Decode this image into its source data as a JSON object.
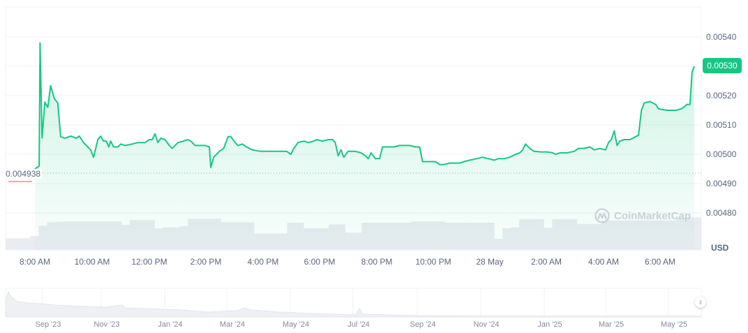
{
  "chart_data": {
    "type": "line",
    "title": "",
    "currency": "USD",
    "current_price_label": "0.00530",
    "start_price_label": "0.004938",
    "yaxis": {
      "ticks": [
        "0.00540",
        "0.00530",
        "0.00520",
        "0.00510",
        "0.00500",
        "0.00490",
        "0.00480"
      ],
      "ylim": [
        0.00476,
        0.0055
      ]
    },
    "xaxis": {
      "ticks": [
        "8:00 AM",
        "10:00 AM",
        "12:00 PM",
        "2:00 PM",
        "4:00 PM",
        "6:00 PM",
        "8:00 PM",
        "10:00 PM",
        "28 May",
        "2:00 AM",
        "4:00 AM",
        "6:00 AM"
      ]
    },
    "series": [
      {
        "name": "Price",
        "color": "#16c784",
        "points": [
          [
            0.0,
            0.00495
          ],
          [
            0.15,
            0.00496
          ],
          [
            0.18,
            0.00538
          ],
          [
            0.25,
            0.005056
          ],
          [
            0.35,
            0.005178
          ],
          [
            0.45,
            0.00516
          ],
          [
            0.55,
            0.005234
          ],
          [
            0.68,
            0.00519
          ],
          [
            0.8,
            0.005175
          ],
          [
            0.9,
            0.00506
          ],
          [
            1.05,
            0.005055
          ],
          [
            1.25,
            0.005062
          ],
          [
            1.45,
            0.005055
          ],
          [
            1.55,
            0.005062
          ],
          [
            1.7,
            0.00504
          ],
          [
            1.85,
            0.005025
          ],
          [
            1.95,
            0.005015
          ],
          [
            2.05,
            0.00499
          ],
          [
            2.2,
            0.00505
          ],
          [
            2.3,
            0.005062
          ],
          [
            2.4,
            0.005045
          ],
          [
            2.5,
            0.005045
          ],
          [
            2.58,
            0.005025
          ],
          [
            2.65,
            0.005045
          ],
          [
            2.75,
            0.005025
          ],
          [
            2.9,
            0.005025
          ],
          [
            3.0,
            0.005035
          ],
          [
            3.15,
            0.00503
          ],
          [
            3.4,
            0.005035
          ],
          [
            3.6,
            0.00504
          ],
          [
            3.85,
            0.00504
          ],
          [
            4.0,
            0.00505
          ],
          [
            4.1,
            0.00505
          ],
          [
            4.2,
            0.00507
          ],
          [
            4.3,
            0.00504
          ],
          [
            4.4,
            0.005055
          ],
          [
            4.55,
            0.00505
          ],
          [
            4.7,
            0.00503
          ],
          [
            4.8,
            0.00502
          ],
          [
            5.0,
            0.00504
          ],
          [
            5.2,
            0.005045
          ],
          [
            5.35,
            0.00505
          ],
          [
            5.45,
            0.005045
          ],
          [
            5.6,
            0.00503
          ],
          [
            5.8,
            0.00503
          ],
          [
            5.95,
            0.00503
          ],
          [
            6.1,
            0.005025
          ],
          [
            6.15,
            0.004955
          ],
          [
            6.25,
            0.00499
          ],
          [
            6.45,
            0.00501
          ],
          [
            6.6,
            0.00502
          ],
          [
            6.75,
            0.00506
          ],
          [
            6.85,
            0.00506
          ],
          [
            7.0,
            0.00504
          ],
          [
            7.1,
            0.00503
          ],
          [
            7.25,
            0.005035
          ],
          [
            7.4,
            0.005025
          ],
          [
            7.6,
            0.005015
          ],
          [
            7.9,
            0.00501
          ],
          [
            8.3,
            0.00501
          ],
          [
            8.6,
            0.00501
          ],
          [
            8.8,
            0.00501
          ],
          [
            8.95,
            0.005
          ],
          [
            9.05,
            0.00502
          ],
          [
            9.2,
            0.00504
          ],
          [
            9.4,
            0.005045
          ],
          [
            9.55,
            0.00504
          ],
          [
            9.75,
            0.005045
          ],
          [
            9.85,
            0.00505
          ],
          [
            10.05,
            0.005045
          ],
          [
            10.25,
            0.00505
          ],
          [
            10.4,
            0.00505
          ],
          [
            10.5,
            0.00504
          ],
          [
            10.6,
            0.004995
          ],
          [
            10.7,
            0.005015
          ],
          [
            10.8,
            0.00499
          ],
          [
            10.95,
            0.00501
          ],
          [
            11.2,
            0.00501
          ],
          [
            11.4,
            0.005005
          ],
          [
            11.55,
            0.004995
          ],
          [
            11.65,
            0.004985
          ],
          [
            11.75,
            0.005005
          ],
          [
            11.9,
            0.004985
          ],
          [
            12.05,
            0.004985
          ],
          [
            12.15,
            0.005025
          ],
          [
            12.35,
            0.005025
          ],
          [
            12.55,
            0.005025
          ],
          [
            12.75,
            0.00503
          ],
          [
            12.9,
            0.00503
          ],
          [
            13.1,
            0.00503
          ],
          [
            13.3,
            0.005025
          ],
          [
            13.45,
            0.005025
          ],
          [
            13.55,
            0.004975
          ],
          [
            13.75,
            0.004975
          ],
          [
            14.0,
            0.004975
          ],
          [
            14.15,
            0.004965
          ],
          [
            14.3,
            0.004965
          ],
          [
            14.5,
            0.00497
          ],
          [
            14.7,
            0.00497
          ],
          [
            14.85,
            0.00497
          ],
          [
            15.0,
            0.004975
          ],
          [
            15.2,
            0.00498
          ],
          [
            15.45,
            0.004985
          ],
          [
            15.65,
            0.00499
          ],
          [
            15.85,
            0.004985
          ],
          [
            16.05,
            0.00498
          ],
          [
            16.2,
            0.004985
          ],
          [
            16.4,
            0.004985
          ],
          [
            16.6,
            0.00499
          ],
          [
            16.8,
            0.005
          ],
          [
            16.95,
            0.005005
          ],
          [
            17.05,
            0.005015
          ],
          [
            17.15,
            0.005035
          ],
          [
            17.3,
            0.00502
          ],
          [
            17.45,
            0.00501
          ],
          [
            17.7,
            0.005008
          ],
          [
            17.9,
            0.005008
          ],
          [
            18.1,
            0.005005
          ],
          [
            18.2,
            0.005
          ],
          [
            18.35,
            0.005005
          ],
          [
            18.6,
            0.005005
          ],
          [
            18.85,
            0.00501
          ],
          [
            19.0,
            0.00502
          ],
          [
            19.2,
            0.00502
          ],
          [
            19.4,
            0.005025
          ],
          [
            19.55,
            0.005015
          ],
          [
            19.75,
            0.00502
          ],
          [
            19.95,
            0.005015
          ],
          [
            20.05,
            0.00504
          ],
          [
            20.15,
            0.00505
          ],
          [
            20.25,
            0.00508
          ],
          [
            20.35,
            0.00503
          ],
          [
            20.45,
            0.005045
          ],
          [
            20.6,
            0.00505
          ],
          [
            20.8,
            0.00505
          ],
          [
            21.0,
            0.00506
          ],
          [
            21.1,
            0.005065
          ],
          [
            21.2,
            0.00515
          ],
          [
            21.3,
            0.005175
          ],
          [
            21.5,
            0.00518
          ],
          [
            21.7,
            0.00517
          ],
          [
            21.8,
            0.005155
          ],
          [
            22.1,
            0.00515
          ],
          [
            22.4,
            0.00515
          ],
          [
            22.6,
            0.005155
          ],
          [
            22.8,
            0.00517
          ],
          [
            22.9,
            0.00517
          ],
          [
            22.97,
            0.00528
          ],
          [
            23.05,
            0.0053
          ]
        ],
        "x_unit": "hours since ~7:00 AM"
      },
      {
        "name": "Volume",
        "color": "#e6e9ee",
        "relative_heights": [
          0.27,
          0.27,
          0.27,
          0.32,
          0.56,
          0.64,
          0.65,
          0.66,
          0.66,
          0.66,
          0.66,
          0.66,
          0.66,
          0.66,
          0.58,
          0.69,
          0.69,
          0.69,
          0.5,
          0.52,
          0.52,
          0.55,
          0.72,
          0.72,
          0.72,
          0.72,
          0.64,
          0.64,
          0.64,
          0.64,
          0.38,
          0.38,
          0.38,
          0.38,
          0.63,
          0.63,
          0.5,
          0.5,
          0.5,
          0.59,
          0.59,
          0.4,
          0.4,
          0.63,
          0.63,
          0.63,
          0.63,
          0.63,
          0.63,
          0.66,
          0.66,
          0.66,
          0.66,
          0.63,
          0.63,
          0.63,
          0.63,
          0.63,
          0.63,
          0.26,
          0.5,
          0.52,
          0.71,
          0.71,
          0.71,
          0.51,
          0.71,
          0.71,
          0.71,
          0.6,
          0.6,
          0.6,
          0.68,
          0.68,
          0.68,
          0.68,
          0.68,
          0.68,
          0.68,
          0.68,
          0.68,
          0.75,
          0.75,
          0.75
        ]
      }
    ],
    "navigator": {
      "ticks": [
        "Sep '23",
        "Nov '23",
        "Jan '24",
        "Mar '24",
        "May '24",
        "Jul '24",
        "Sep '24",
        "Nov '24",
        "Jan '25",
        "Mar '25",
        "May '25"
      ]
    },
    "grid": true,
    "legend": "none"
  },
  "ui": {
    "currency_label": "USD",
    "watermark": "CoinMarketCap",
    "navigator_handle": "ll",
    "colors": {
      "up": "#16c784",
      "down": "#ea3943",
      "grid": "#eff2f5",
      "text": "#58667e"
    }
  }
}
